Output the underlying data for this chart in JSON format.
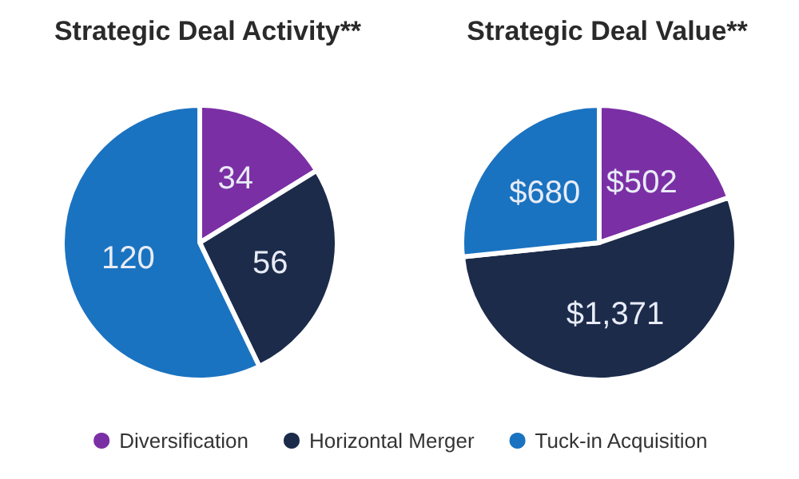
{
  "chart_data": {
    "type": "pie",
    "categories": [
      "Diversification",
      "Horizontal Merger",
      "Tuck-in Acquisition"
    ],
    "colors": [
      "#7b2fa5",
      "#1c2b4a",
      "#1a73c0"
    ],
    "legend": "bottom",
    "series": [
      {
        "name": "Strategic Deal Activity**",
        "values": [
          34,
          56,
          120
        ],
        "value_labels": [
          "34",
          "56",
          "120"
        ]
      },
      {
        "name": "Strategic Deal Value**",
        "values": [
          502,
          1371,
          680
        ],
        "value_labels": [
          "$502",
          "$1,371",
          "$680"
        ]
      }
    ]
  }
}
